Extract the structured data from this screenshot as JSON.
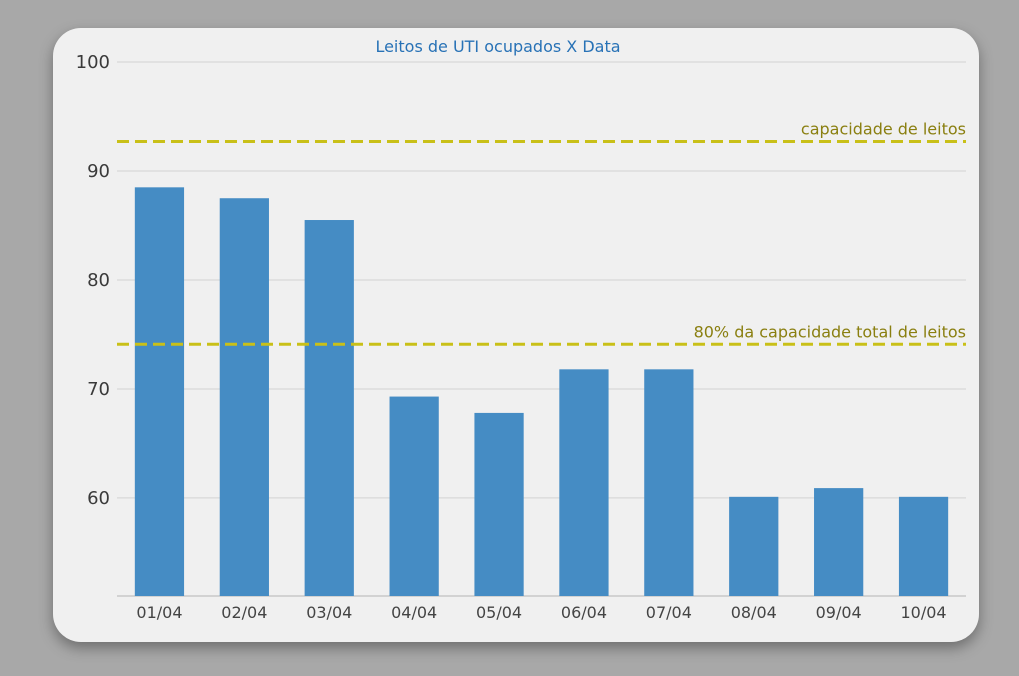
{
  "chart_data": {
    "type": "bar",
    "title": "Leitos de UTI ocupados X Data",
    "xlabel": "",
    "ylabel": "",
    "categories": [
      "01/04",
      "02/04",
      "03/04",
      "04/04",
      "05/04",
      "06/04",
      "07/04",
      "08/04",
      "09/04",
      "10/04"
    ],
    "values": [
      88.5,
      87.5,
      85.5,
      69.3,
      67.8,
      71.8,
      71.8,
      60.1,
      60.9,
      60.1
    ],
    "ylim": [
      51,
      100
    ],
    "yticks": [
      "60",
      "70",
      "80",
      "90",
      "100"
    ],
    "grid": true,
    "reference_lines": [
      {
        "label": "capacidade de leitos",
        "value": 92.7
      },
      {
        "label": "80% da capacidade total de leitos",
        "value": 74.1
      }
    ],
    "colors": {
      "bar": "#458cc4",
      "reference_line": "#c9c018",
      "title": "#2872b6",
      "reference_label": "#8a7f10"
    }
  }
}
